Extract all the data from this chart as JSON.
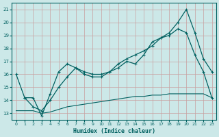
{
  "xlabel": "Humidex (Indice chaleur)",
  "xlim": [
    -0.5,
    23.5
  ],
  "ylim": [
    12.5,
    21.5
  ],
  "yticks": [
    13,
    14,
    15,
    16,
    17,
    18,
    19,
    20,
    21
  ],
  "xticks": [
    0,
    1,
    2,
    3,
    4,
    5,
    6,
    7,
    8,
    9,
    10,
    11,
    12,
    13,
    14,
    15,
    16,
    17,
    18,
    19,
    20,
    21,
    22,
    23
  ],
  "bg_color": "#cce8e8",
  "grid_color": "#b0d4d4",
  "line_color": "#006060",
  "line1_x": [
    0,
    1,
    2,
    3,
    4,
    5,
    6,
    7,
    8,
    9,
    10,
    11,
    12,
    13,
    14,
    15,
    16,
    17,
    18,
    19,
    20,
    21,
    22,
    23
  ],
  "line1_y": [
    16.0,
    14.2,
    14.2,
    12.8,
    14.5,
    16.2,
    16.8,
    16.5,
    16.0,
    15.8,
    15.8,
    16.2,
    16.5,
    17.0,
    16.8,
    17.5,
    18.5,
    18.8,
    19.2,
    20.0,
    21.0,
    19.2,
    17.2,
    16.2
  ],
  "line2_x": [
    1,
    2,
    3,
    4,
    5,
    6,
    7,
    8,
    9,
    10,
    11,
    12,
    13,
    14,
    15,
    16,
    17,
    18,
    19,
    20,
    21,
    22,
    23
  ],
  "line2_y": [
    14.2,
    13.5,
    13.2,
    14.0,
    15.0,
    15.8,
    16.5,
    16.2,
    16.0,
    16.0,
    16.2,
    16.8,
    17.2,
    17.5,
    17.8,
    18.2,
    18.8,
    19.0,
    19.5,
    19.2,
    17.5,
    16.2,
    14.2
  ],
  "line3_x": [
    0,
    1,
    2,
    3,
    4,
    5,
    6,
    7,
    8,
    9,
    10,
    11,
    12,
    13,
    14,
    15,
    16,
    17,
    18,
    19,
    20,
    21,
    22,
    23
  ],
  "line3_y": [
    13.2,
    13.2,
    13.2,
    13.0,
    13.1,
    13.3,
    13.5,
    13.6,
    13.7,
    13.8,
    13.9,
    14.0,
    14.1,
    14.2,
    14.3,
    14.3,
    14.4,
    14.4,
    14.5,
    14.5,
    14.5,
    14.5,
    14.5,
    14.2
  ]
}
